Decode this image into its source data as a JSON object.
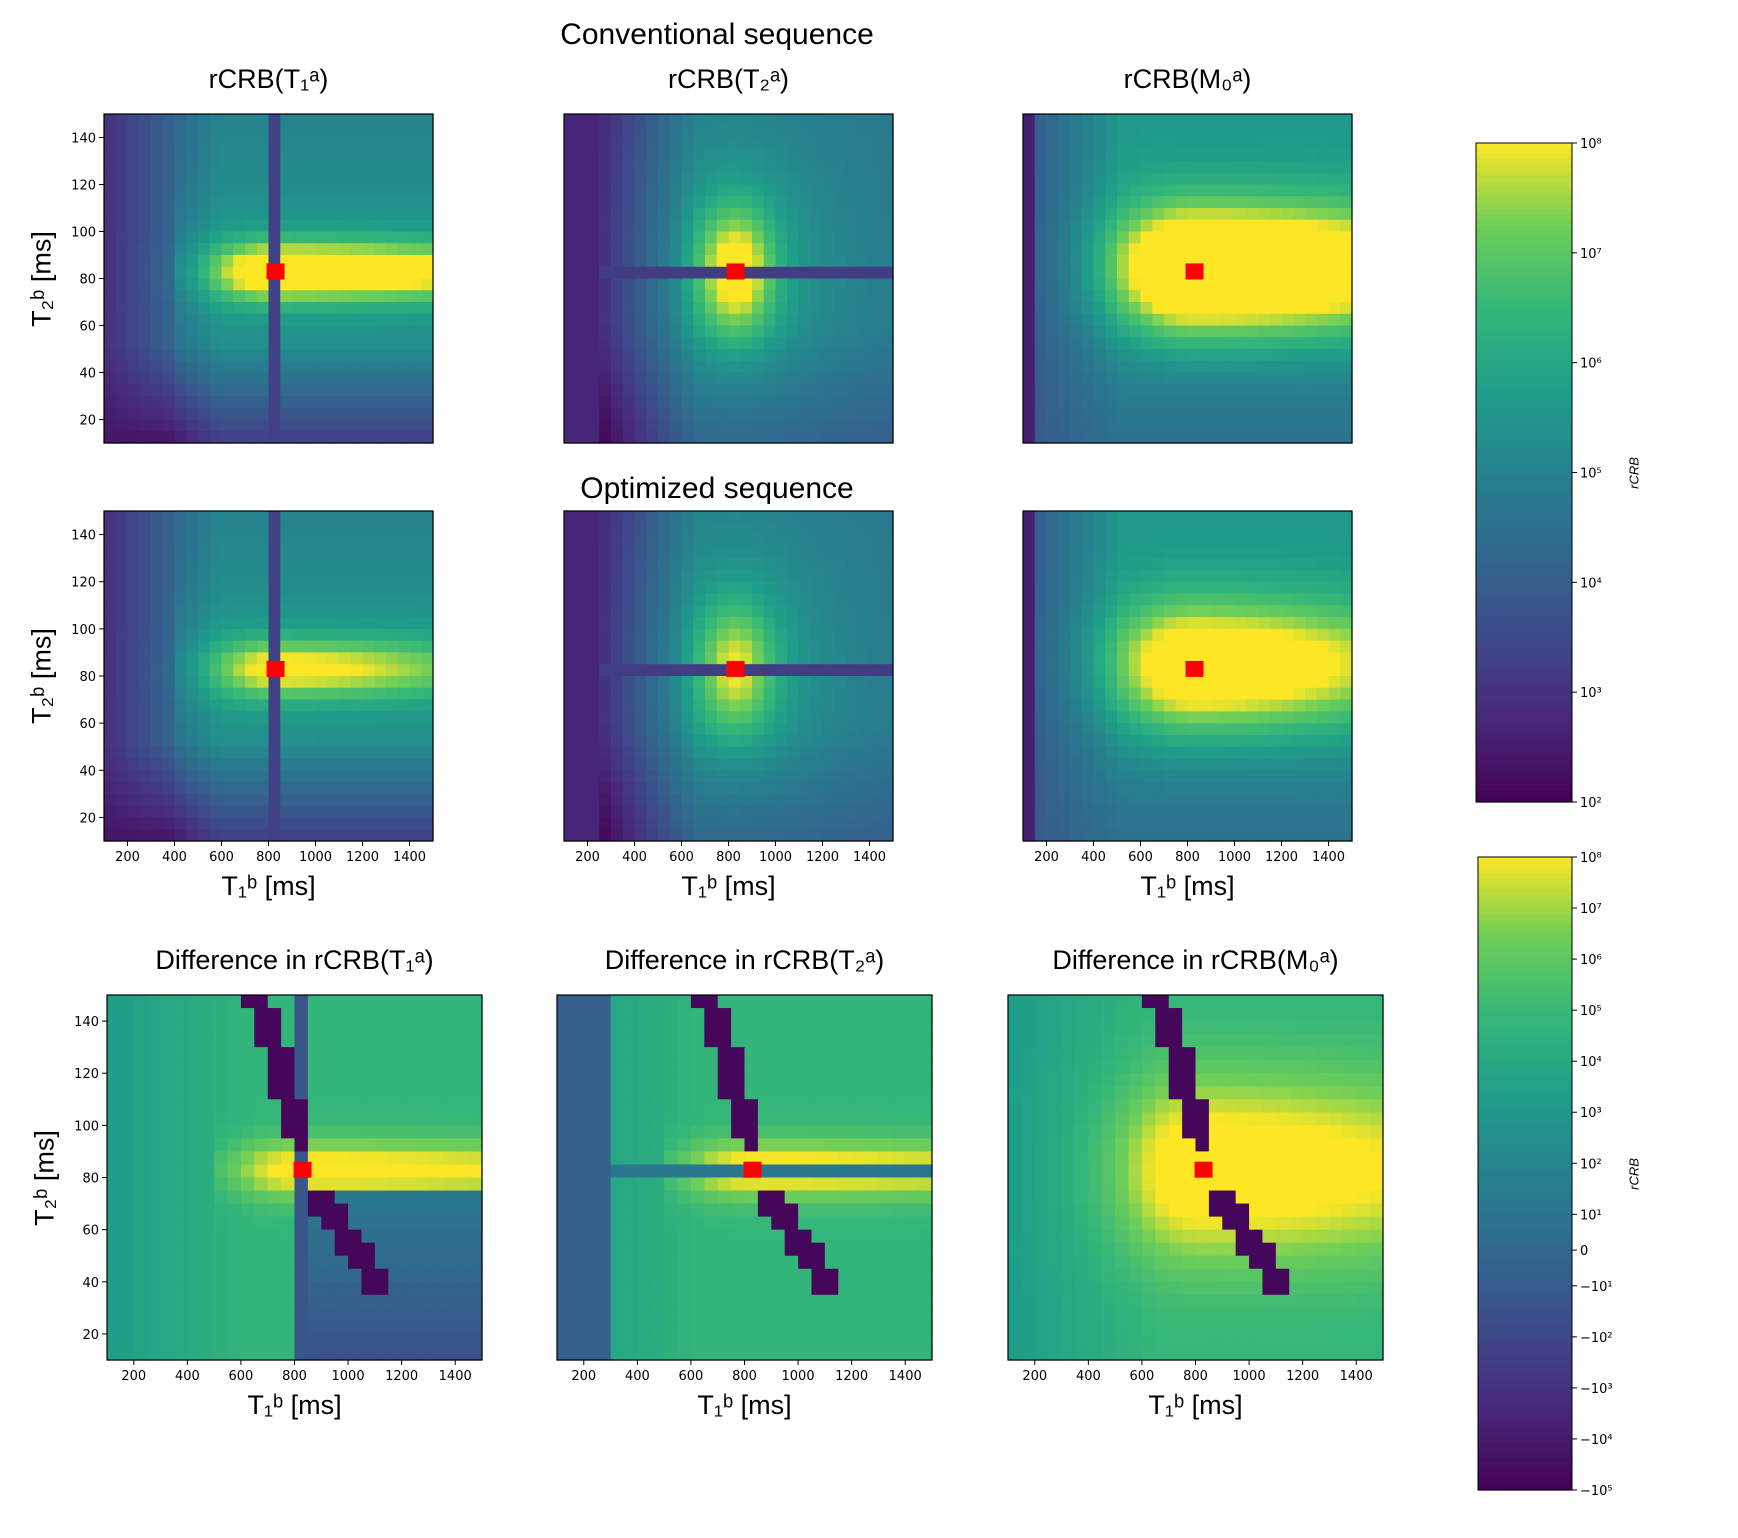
{
  "titles": {
    "conventional": "Conventional sequence",
    "optimized": "Optimized sequence"
  },
  "axis_labels": {
    "x": "T₁ᵇ [ms]",
    "y": "T₂ᵇ [ms]"
  },
  "chart_data": {
    "type": "heatmap",
    "x_range": [
      100,
      1500
    ],
    "y_range": [
      10,
      150
    ],
    "x_ticks": [
      "200",
      "400",
      "600",
      "800",
      "1000",
      "1200",
      "1400"
    ],
    "y_ticks": [
      "20",
      "40",
      "60",
      "80",
      "100",
      "120",
      "140"
    ],
    "grid_cols": 28,
    "grid_rows": 28,
    "marker": {
      "t1": 830,
      "t2": 83,
      "color": "#ff0000"
    },
    "colormap": "viridis",
    "panels": [
      {
        "id": "conv-t1",
        "title": "rCRB(T₁ᵃ)",
        "kind": "t1",
        "scale": 1.0
      },
      {
        "id": "conv-t2",
        "title": "rCRB(T₂ᵃ)",
        "kind": "t2",
        "scale": 1.0
      },
      {
        "id": "conv-m0",
        "title": "rCRB(M₀ᵃ)",
        "kind": "m0",
        "scale": 1.0
      },
      {
        "id": "opt-t1",
        "title": "",
        "kind": "t1",
        "scale": 0.75
      },
      {
        "id": "opt-t2",
        "title": "",
        "kind": "t2",
        "scale": 0.8
      },
      {
        "id": "opt-m0",
        "title": "",
        "kind": "m0",
        "scale": 0.8
      },
      {
        "id": "diff-t1",
        "title": "Difference in rCRB(T₁ᵃ)",
        "kind": "d1",
        "scale": 1.0
      },
      {
        "id": "diff-t2",
        "title": "Difference in rCRB(T₂ᵃ)",
        "kind": "d2",
        "scale": 1.0
      },
      {
        "id": "diff-m0",
        "title": "Difference in rCRB(M₀ᵃ)",
        "kind": "d3",
        "scale": 1.0
      }
    ],
    "colorbars": [
      {
        "label": "rCRB",
        "scale": "log",
        "range": [
          100,
          100000000
        ],
        "ticks": [
          {
            "v": 8,
            "t": "10⁸"
          },
          {
            "v": 7,
            "t": "10⁷"
          },
          {
            "v": 6,
            "t": "10⁶"
          },
          {
            "v": 5,
            "t": "10⁵"
          },
          {
            "v": 4,
            "t": "10⁴"
          },
          {
            "v": 3,
            "t": "10³"
          },
          {
            "v": 2,
            "t": "10²"
          }
        ]
      },
      {
        "label": "rCRB",
        "scale": "symlog",
        "range": [
          -100000,
          100000000
        ],
        "ticks": [
          {
            "v": 8,
            "t": "10⁸"
          },
          {
            "v": 7,
            "t": "10⁷"
          },
          {
            "v": 6,
            "t": "10⁶"
          },
          {
            "v": 5,
            "t": "10⁵"
          },
          {
            "v": 4,
            "t": "10⁴"
          },
          {
            "v": 3,
            "t": "10³"
          },
          {
            "v": 2,
            "t": "10²"
          },
          {
            "v": 1,
            "t": "10¹"
          },
          {
            "v": 0,
            "t": "0"
          },
          {
            "v": -1,
            "t": "−10¹"
          },
          {
            "v": -2,
            "t": "−10²"
          },
          {
            "v": -3,
            "t": "−10³"
          },
          {
            "v": -4,
            "t": "−10⁴"
          },
          {
            "v": -5,
            "t": "−10⁵"
          }
        ]
      }
    ]
  }
}
